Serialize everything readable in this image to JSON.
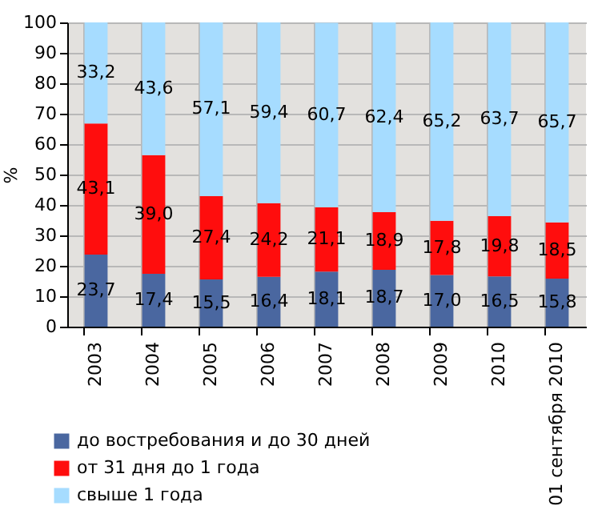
{
  "chart_data": {
    "type": "bar",
    "stacked": true,
    "ylabel": "%",
    "categories": [
      "2003",
      "2004",
      "2005",
      "2006",
      "2007",
      "2008",
      "2009",
      "2010",
      "01 сентября 2010"
    ],
    "series": [
      {
        "name": "до востребования и до 30 дней",
        "color": "#4a67a0",
        "values": [
          23.7,
          17.4,
          15.5,
          16.4,
          18.1,
          18.7,
          17.0,
          16.5,
          15.8
        ],
        "value_labels": [
          "23,7",
          "17,4",
          "15,5",
          "16,4",
          "18,1",
          "18,7",
          "17,0",
          "16,5",
          "15,8"
        ]
      },
      {
        "name": "от 31 дня до 1 года",
        "color": "#ff0d0d",
        "values": [
          43.1,
          39.0,
          27.4,
          24.2,
          21.1,
          18.9,
          17.8,
          19.8,
          18.5
        ],
        "value_labels": [
          "43,1",
          "39,0",
          "27,4",
          "24,2",
          "21,1",
          "18,9",
          "17,8",
          "19,8",
          "18,5"
        ]
      },
      {
        "name": "свыше 1 года",
        "color": "#a6dcff",
        "values": [
          33.2,
          43.6,
          57.1,
          59.4,
          60.7,
          62.4,
          65.2,
          63.7,
          65.7
        ],
        "value_labels": [
          "33,2",
          "43,6",
          "57,1",
          "59,4",
          "60,7",
          "62,4",
          "65,2",
          "63,7",
          "65,7"
        ]
      }
    ],
    "ylim": [
      0,
      100
    ],
    "yticks": [
      0,
      10,
      20,
      30,
      40,
      50,
      60,
      70,
      80,
      90,
      100
    ],
    "grid": true,
    "legend": "bottom left"
  }
}
